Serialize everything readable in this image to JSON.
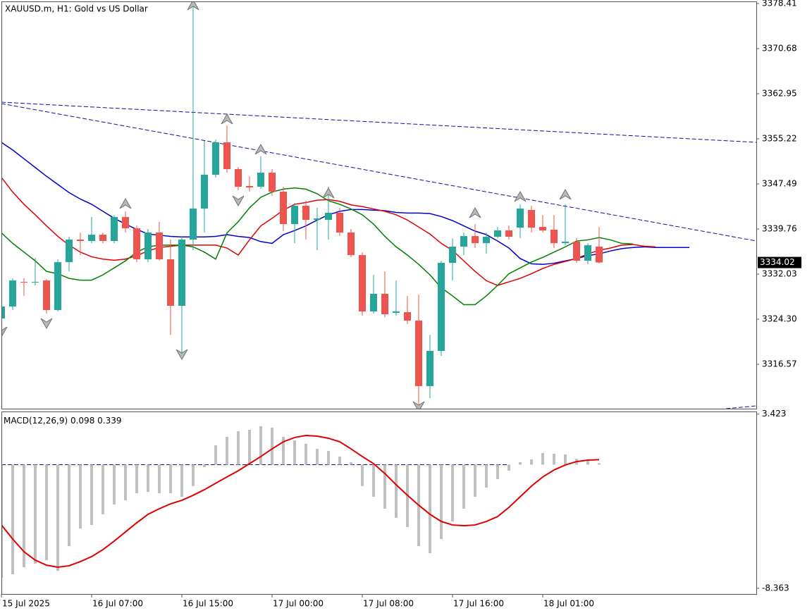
{
  "chart_data": [
    {
      "type": "candlestick",
      "title": "XAUUSD.m, H1:  Gold vs US Dollar",
      "categories": [
        "15 Jul 2025",
        null,
        null,
        null,
        null,
        null,
        null,
        null,
        "16 Jul 07:00",
        null,
        null,
        null,
        null,
        null,
        null,
        null,
        "16 Jul 15:00",
        null,
        null,
        null,
        null,
        null,
        null,
        null,
        "17 Jul 00:00",
        null,
        null,
        null,
        null,
        null,
        null,
        null,
        "17 Jul 08:00",
        null,
        null,
        null,
        null,
        null,
        null,
        null,
        "17 Jul 16:00",
        null,
        null,
        null,
        null,
        null,
        null,
        null,
        "18 Jul 01:00",
        null,
        null,
        null,
        null,
        null
      ],
      "open": [
        3324.42,
        3326.48,
        3330.7,
        3330.58,
        3330.94,
        3325.87,
        3334.08,
        3337.95,
        3337.71,
        3338.79,
        3337.71,
        3341.81,
        3339.88,
        3334.57,
        3339.16,
        3334.57,
        3326.6,
        3337.95,
        3343.26,
        3349.06,
        3354.62,
        3350.03,
        3347.13,
        3347.01,
        3349.42,
        3346.16,
        3340.61,
        3343.75,
        3341.33,
        3341.33,
        3342.54,
        3339.16,
        3335.29,
        3325.63,
        3328.65,
        3325.39,
        3325.51,
        3324.06,
        3312.83,
        3318.87,
        3333.96,
        3336.74,
        3338.55,
        3337.34,
        3338.43,
        3339.52,
        3340.0,
        3343.02,
        3340.12,
        3339.64,
        3337.34,
        3337.59,
        3334.33,
        3336.74
      ],
      "high": [
        3327.08,
        3331.31,
        3331.31,
        3334.81,
        3331.19,
        3334.57,
        3338.43,
        3339.16,
        3341.81,
        3339.16,
        3342.17,
        3342.78,
        3340.36,
        3339.76,
        3340.97,
        3337.95,
        3338.55,
        3378.41,
        3354.86,
        3355.1,
        3357.51,
        3350.39,
        3348.82,
        3352.2,
        3350.03,
        3347.01,
        3344.23,
        3344.59,
        3343.38,
        3347.01,
        3343.38,
        3339.76,
        3335.77,
        3331.91,
        3332.51,
        3330.94,
        3328.29,
        3328.53,
        3321.64,
        3334.33,
        3338.19,
        3339.16,
        3340.61,
        3339.16,
        3340.12,
        3340.36,
        3343.99,
        3343.75,
        3342.17,
        3342.17,
        3343.99,
        3338.19,
        3337.34,
        3340.12
      ],
      "low": [
        3322.25,
        3325.87,
        3328.29,
        3330.1,
        3325.27,
        3325.63,
        3332.51,
        3335.29,
        3337.34,
        3337.34,
        3337.34,
        3339.16,
        3334.08,
        3334.08,
        3334.33,
        3321.64,
        3318.02,
        3336.14,
        3339.16,
        3348.58,
        3349.42,
        3346.4,
        3346.16,
        3346.64,
        3345.44,
        3339.4,
        3337.34,
        3337.95,
        3336.14,
        3337.95,
        3338.55,
        3334.93,
        3324.91,
        3325.27,
        3324.66,
        3324.91,
        3323.46,
        3309.57,
        3310.78,
        3318.02,
        3330.94,
        3335.29,
        3336.5,
        3335.53,
        3338.19,
        3337.95,
        3338.19,
        3339.16,
        3339.16,
        3336.5,
        3336.98,
        3333.96,
        3333.72,
        3333.84
      ],
      "close": [
        3326.48,
        3330.94,
        3330.58,
        3330.7,
        3325.87,
        3334.08,
        3337.95,
        3337.71,
        3338.79,
        3337.71,
        3341.81,
        3339.88,
        3334.57,
        3339.16,
        3334.57,
        3326.6,
        3337.95,
        3343.26,
        3349.06,
        3354.62,
        3350.03,
        3347.01,
        3346.88,
        3349.42,
        3346.16,
        3340.61,
        3343.75,
        3341.33,
        3341.57,
        3342.54,
        3339.16,
        3335.29,
        3325.63,
        3328.65,
        3325.15,
        3325.63,
        3324.06,
        3312.83,
        3318.87,
        3333.96,
        3336.74,
        3338.55,
        3337.34,
        3338.43,
        3339.52,
        3338.43,
        3343.26,
        3340.0,
        3339.52,
        3337.34,
        3337.59,
        3334.33,
        3336.98,
        3334.02
      ],
      "bull_color": "#26a69a",
      "bear_color": "#ef5350",
      "moving_averages": [
        {
          "color": "#0000d0",
          "values": [
            3354.6,
            3353.3,
            3351.8,
            3350.3,
            3348.8,
            3347.4,
            3346.0,
            3344.9,
            3344.0,
            3342.8,
            3341.6,
            3340.6,
            3339.7,
            3338.9,
            3338.7,
            3338.5,
            3338.4,
            3338.4,
            3338.4,
            3338.5,
            3338.8,
            3338.5,
            3338.3,
            3337.6,
            3337.3,
            3338.8,
            3339.5,
            3340.3,
            3341.3,
            3342.2,
            3342.8,
            3343.1,
            3343.1,
            3343.0,
            3342.9,
            3342.6,
            3342.5,
            3342.5,
            3342.4,
            3341.9,
            3341.2,
            3340.3,
            3339.4,
            3338.8,
            3337.7,
            3336.5,
            3334.7,
            3333.8,
            3333.7,
            3333.9,
            3334.3,
            3334.7,
            3335.2,
            3335.5,
            3336.0,
            3336.4,
            3336.6,
            3336.7,
            3336.6,
            3336.6,
            3336.6,
            3336.6
          ]
        },
        {
          "color": "#e00000",
          "values": [
            3348.6,
            3346.1,
            3344.0,
            3342.2,
            3340.3,
            3338.5,
            3337.0,
            3335.8,
            3335.0,
            3334.6,
            3334.4,
            3334.6,
            3335.2,
            3336.0,
            3336.6,
            3336.8,
            3337.0,
            3337.0,
            3337.0,
            3337.0,
            3336.5,
            3335.3,
            3337.9,
            3340.3,
            3341.6,
            3343.0,
            3344.0,
            3344.3,
            3344.7,
            3344.8,
            3344.5,
            3343.9,
            3343.6,
            3343.2,
            3342.8,
            3342.2,
            3341.3,
            3340.1,
            3338.9,
            3337.3,
            3336.1,
            3334.3,
            3332.5,
            3330.9,
            3330.1,
            3330.7,
            3331.3,
            3332.1,
            3333.0,
            3333.7,
            3334.2,
            3334.7,
            3335.5,
            3336.1,
            3336.5,
            3337.0,
            3337.1,
            3336.8,
            3336.7
          ]
        },
        {
          "color": "#008000",
          "values": [
            3339.1,
            3337.3,
            3335.8,
            3334.3,
            3332.5,
            3332.1,
            3331.3,
            3331.0,
            3331.0,
            3331.9,
            3333.1,
            3334.3,
            3335.8,
            3336.7,
            3337.0,
            3337.0,
            3337.0,
            3336.7,
            3335.8,
            3334.6,
            3339.1,
            3341.0,
            3343.4,
            3345.2,
            3346.1,
            3346.6,
            3346.8,
            3346.6,
            3345.8,
            3344.6,
            3344.0,
            3343.2,
            3342.2,
            3340.6,
            3338.5,
            3336.7,
            3335.3,
            3333.7,
            3331.9,
            3329.7,
            3328.3,
            3326.8,
            3326.8,
            3328.3,
            3330.1,
            3332.1,
            3333.1,
            3334.1,
            3334.9,
            3335.8,
            3336.7,
            3337.7,
            3337.9,
            3338.3,
            3337.9,
            3337.3,
            3337.2
          ]
        }
      ],
      "ylim": [
        3308.97,
        3378.77
      ],
      "yticks": [
        3378.41,
        3370.68,
        3362.95,
        3355.22,
        3347.49,
        3339.76,
        3332.03,
        {
          "value": 3324.3,
          "label": "3324.30"
        },
        3316.57
      ]
    },
    {
      "type": "macd",
      "title": "MACD(12,26,9)",
      "series": [
        {
          "color": "#c0c0c0",
          "values": [
            -7.65,
            -7.42,
            -6.94,
            -6.7,
            -6.46,
            -7.18,
            -5.51,
            -4.32,
            -4.08,
            -3.36,
            -2.69,
            -2.41,
            -1.93,
            -1.84,
            -1.93,
            -1.93,
            -2.17,
            -1.45,
            -0.17,
            1.31,
            1.88,
            2.26,
            2.36,
            2.6,
            2.5,
            1.88,
            1.64,
            1.41,
            1.07,
            0.93,
            0.55,
            0.17,
            -1.45,
            -2.17,
            -2.98,
            -3.6,
            -4.22,
            -5.51,
            -5.99,
            -5.03,
            -3.84,
            -2.98,
            -2.17,
            -1.55,
            -0.98,
            -0.41,
            0.17,
            0.36,
            0.79,
            0.74,
            0.69,
            0.4,
            0.31,
            0.098
          ]
        },
        {
          "color": "#e00000",
          "values": [
            -4.08,
            -5.03,
            -5.89,
            -6.46,
            -6.8,
            -6.94,
            -6.84,
            -6.56,
            -6.22,
            -5.75,
            -5.17,
            -4.55,
            -3.93,
            -3.36,
            -2.98,
            -2.65,
            -2.41,
            -2.07,
            -1.69,
            -1.26,
            -0.83,
            -0.41,
            0.07,
            0.55,
            1.07,
            1.55,
            1.84,
            1.98,
            1.93,
            1.79,
            1.55,
            1.07,
            0.55,
            0.07,
            -0.6,
            -1.36,
            -2.07,
            -2.74,
            -3.36,
            -3.84,
            -4.08,
            -4.13,
            -4.08,
            -3.84,
            -3.51,
            -2.89,
            -2.17,
            -1.45,
            -0.83,
            -0.36,
            -0.02,
            0.21,
            0.31,
            0.339
          ]
        }
      ],
      "ylim": [
        -8.75,
        3.6
      ],
      "yticks": [
        3.423,
        -8.363
      ]
    }
  ]
}
